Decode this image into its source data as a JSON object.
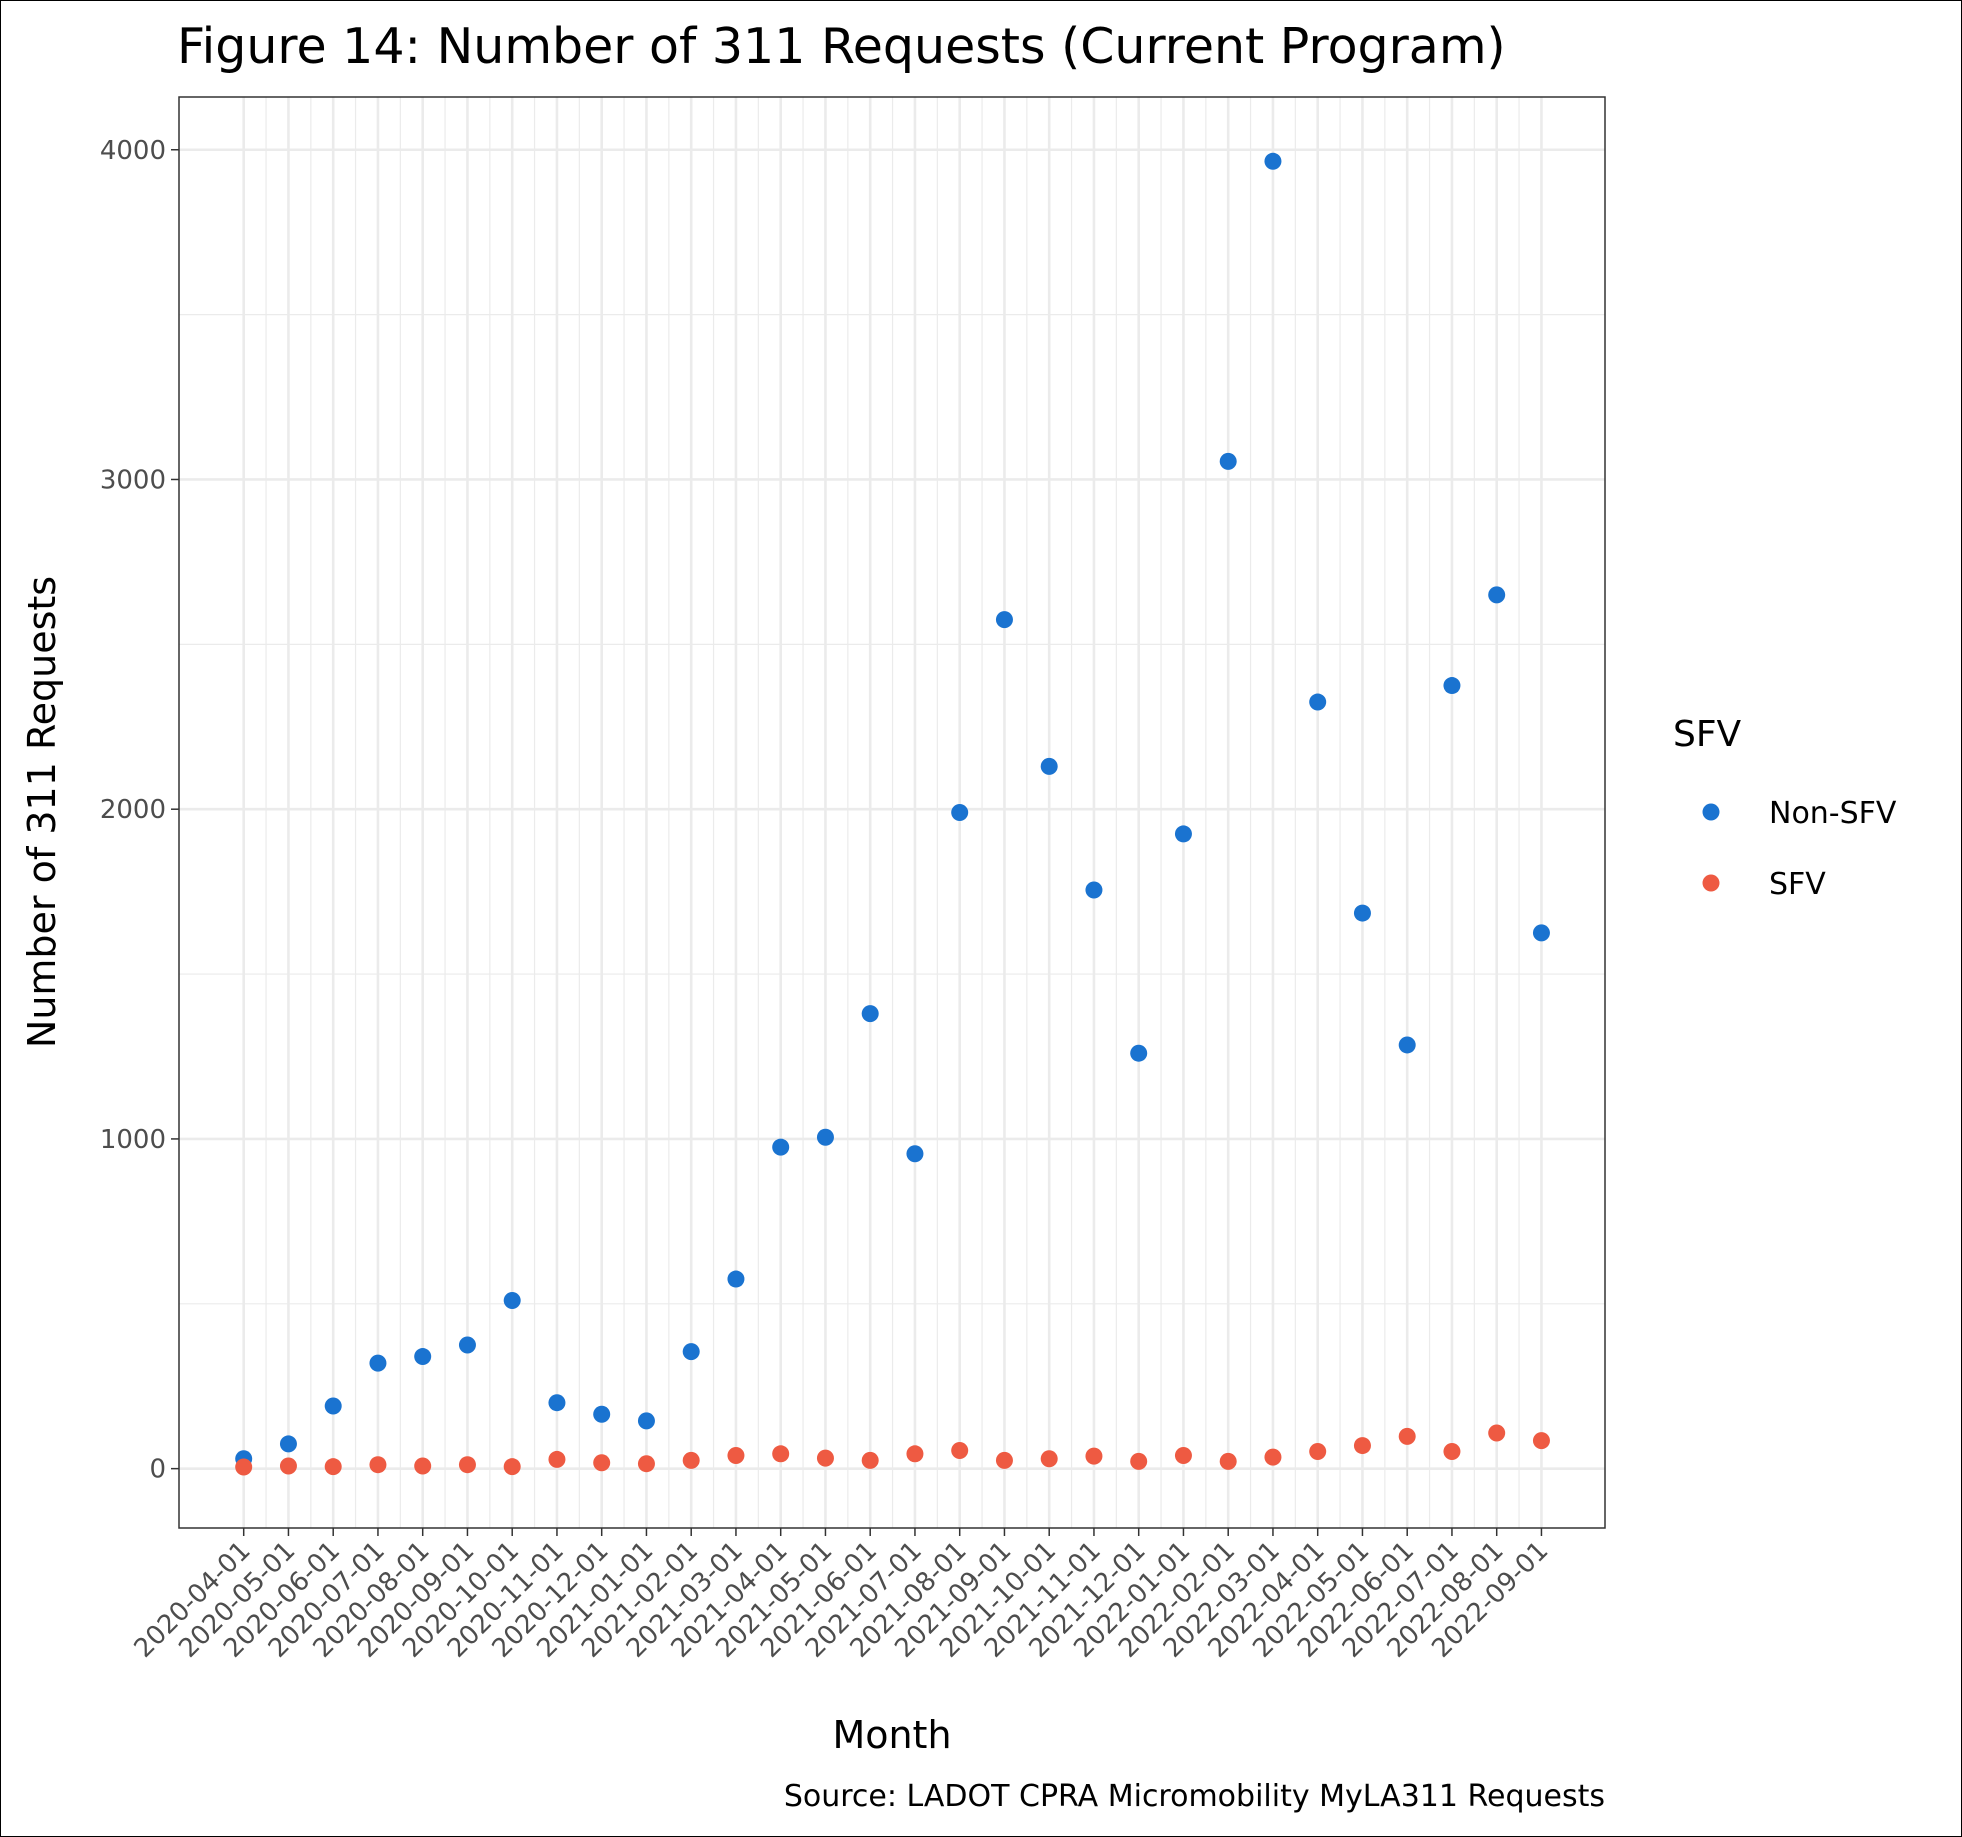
{
  "chart_data": {
    "type": "scatter",
    "title": "Figure 14: Number of 311 Requests (Current Program)",
    "xlabel": "Month",
    "ylabel": "Number of 311 Requests",
    "caption": "Source: LADOT CPRA Micromobility MyLA311 Requests",
    "categories": [
      "2020-04-01",
      "2020-05-01",
      "2020-06-01",
      "2020-07-01",
      "2020-08-01",
      "2020-09-01",
      "2020-10-01",
      "2020-11-01",
      "2020-12-01",
      "2021-01-01",
      "2021-02-01",
      "2021-03-01",
      "2021-04-01",
      "2021-05-01",
      "2021-06-01",
      "2021-07-01",
      "2021-08-01",
      "2021-09-01",
      "2021-10-01",
      "2021-11-01",
      "2021-12-01",
      "2022-01-01",
      "2022-02-01",
      "2022-03-01",
      "2022-04-01",
      "2022-05-01",
      "2022-06-01",
      "2022-07-01",
      "2022-08-01",
      "2022-09-01"
    ],
    "ylim": [
      -180,
      4160
    ],
    "yticks": [
      0,
      1000,
      2000,
      3000,
      4000
    ],
    "grid": true,
    "legend": {
      "title": "SFV",
      "position": "right"
    },
    "series": [
      {
        "name": "Non-SFV",
        "color": "#1a73d0",
        "values": [
          30,
          75,
          190,
          320,
          340,
          375,
          510,
          200,
          165,
          145,
          355,
          575,
          975,
          1005,
          1380,
          955,
          1990,
          2575,
          2130,
          1755,
          1260,
          1925,
          3055,
          3965,
          2325,
          1685,
          1285,
          2375,
          2650,
          1625
        ]
      },
      {
        "name": "SFV",
        "color": "#ee5a42",
        "values": [
          5,
          8,
          6,
          12,
          8,
          12,
          6,
          28,
          18,
          15,
          25,
          40,
          45,
          32,
          25,
          45,
          55,
          25,
          30,
          38,
          22,
          40,
          22,
          35,
          52,
          70,
          98,
          52,
          108,
          85
        ]
      }
    ]
  }
}
